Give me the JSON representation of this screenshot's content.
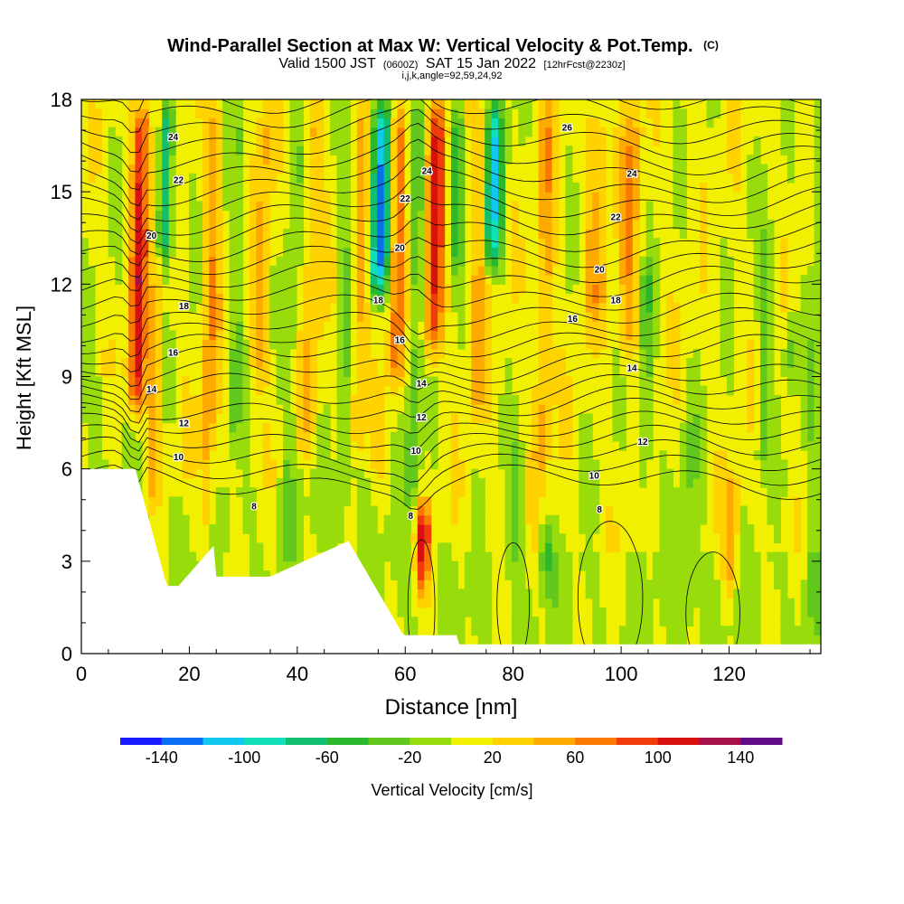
{
  "chart_data": {
    "type": "heatmap",
    "title": "Wind-Parallel Section at Max W: Vertical Velocity & Pot.Temp.",
    "title_mark": "(C)",
    "subtitle_main_a": "Valid 1500 JST",
    "subtitle_small_a": "(0600Z)",
    "subtitle_main_b": "SAT 15 Jan 2022",
    "subtitle_small_b": "[12hrFcst@2230z]",
    "subtitle_line3": "i,j,k,angle=92,59,24,92",
    "xlabel": "Distance [nm]",
    "ylabel": "Height [Kft MSL]",
    "xlim": [
      0,
      137
    ],
    "ylim": [
      0,
      18
    ],
    "x_ticks": [
      0,
      20,
      40,
      60,
      80,
      100,
      120
    ],
    "y_ticks": [
      0,
      3,
      6,
      9,
      12,
      15,
      18
    ],
    "colorbar": {
      "label": "Vertical Velocity [cm/s]",
      "ticks": [
        -140,
        -100,
        -60,
        -20,
        20,
        60,
        100,
        140
      ],
      "bounds": [
        -160,
        -140,
        -120,
        -100,
        -80,
        -60,
        -40,
        -20,
        0,
        20,
        40,
        60,
        80,
        100,
        120,
        140,
        160
      ],
      "colors": [
        "#1a1aff",
        "#0a6ef5",
        "#10c8f0",
        "#10e0b8",
        "#10c070",
        "#2cb82c",
        "#62c81e",
        "#98dc0c",
        "#f0f000",
        "#ffd200",
        "#ffaa00",
        "#fa7a00",
        "#f03c0a",
        "#d81010",
        "#a8104a",
        "#600c88"
      ]
    },
    "contour_labels": [
      {
        "x": 17,
        "y": 16.8,
        "text": "24"
      },
      {
        "x": 18,
        "y": 15.4,
        "text": "22"
      },
      {
        "x": 13,
        "y": 13.6,
        "text": "20"
      },
      {
        "x": 19,
        "y": 11.3,
        "text": "18"
      },
      {
        "x": 17,
        "y": 9.8,
        "text": "16"
      },
      {
        "x": 13,
        "y": 8.6,
        "text": "14"
      },
      {
        "x": 19,
        "y": 7.5,
        "text": "12"
      },
      {
        "x": 18,
        "y": 6.4,
        "text": "10"
      },
      {
        "x": 32,
        "y": 4.8,
        "text": "8"
      },
      {
        "x": 64,
        "y": 15.7,
        "text": "24"
      },
      {
        "x": 60,
        "y": 14.8,
        "text": "22"
      },
      {
        "x": 59,
        "y": 13.2,
        "text": "20"
      },
      {
        "x": 55,
        "y": 11.5,
        "text": "18"
      },
      {
        "x": 59,
        "y": 10.2,
        "text": "16"
      },
      {
        "x": 63,
        "y": 8.8,
        "text": "14"
      },
      {
        "x": 63,
        "y": 7.7,
        "text": "12"
      },
      {
        "x": 62,
        "y": 6.6,
        "text": "10"
      },
      {
        "x": 61,
        "y": 4.5,
        "text": "8"
      },
      {
        "x": 90,
        "y": 17.1,
        "text": "26"
      },
      {
        "x": 102,
        "y": 15.6,
        "text": "24"
      },
      {
        "x": 99,
        "y": 14.2,
        "text": "22"
      },
      {
        "x": 96,
        "y": 12.5,
        "text": "20"
      },
      {
        "x": 99,
        "y": 11.5,
        "text": "18"
      },
      {
        "x": 91,
        "y": 10.9,
        "text": "16"
      },
      {
        "x": 102,
        "y": 9.3,
        "text": "14"
      },
      {
        "x": 104,
        "y": 6.9,
        "text": "12"
      },
      {
        "x": 95,
        "y": 5.8,
        "text": "10"
      },
      {
        "x": 96,
        "y": 4.7,
        "text": "8"
      }
    ]
  }
}
